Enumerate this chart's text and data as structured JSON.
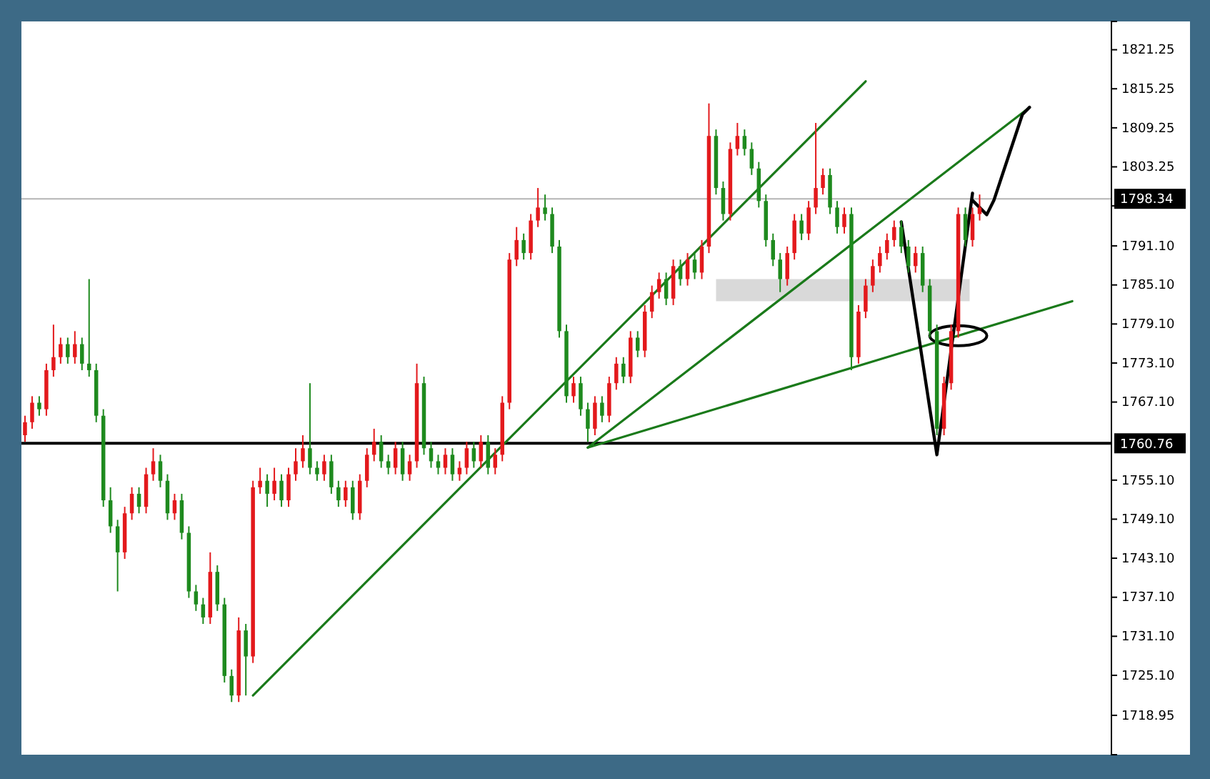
{
  "chart_data": {
    "type": "candlestick",
    "tick_labels": "y",
    "grid": false,
    "ylim": [
      1712.9,
      1825.6
    ],
    "yticks": [
      {
        "value": 1718.95,
        "label": "1718.95"
      },
      {
        "value": 1725.1,
        "label": "1725.10"
      },
      {
        "value": 1731.1,
        "label": "1731.10"
      },
      {
        "value": 1737.1,
        "label": "1737.10"
      },
      {
        "value": 1743.1,
        "label": "1743.10"
      },
      {
        "value": 1749.1,
        "label": "1749.10"
      },
      {
        "value": 1755.1,
        "label": "1755.10"
      },
      {
        "value": 1767.1,
        "label": "1767.10"
      },
      {
        "value": 1773.1,
        "label": "1773.10"
      },
      {
        "value": 1779.1,
        "label": "1779.10"
      },
      {
        "value": 1785.1,
        "label": "1785.10"
      },
      {
        "value": 1791.1,
        "label": "1791.10"
      },
      {
        "value": 1797.25,
        "label": null
      },
      {
        "value": 1803.25,
        "label": "1803.25"
      },
      {
        "value": 1809.25,
        "label": "1809.25"
      },
      {
        "value": 1815.25,
        "label": "1815.25"
      },
      {
        "value": 1821.25,
        "label": "1821.25"
      }
    ],
    "categories": [
      null,
      null,
      null,
      null,
      null,
      null,
      null,
      null,
      null,
      null,
      null,
      null,
      null,
      null,
      null,
      null,
      null,
      null,
      null,
      null,
      null,
      null,
      null,
      null,
      null,
      null,
      null,
      null,
      null,
      null,
      null,
      null,
      null,
      null,
      null,
      null,
      null,
      null,
      null,
      null,
      null,
      null,
      null,
      null,
      null,
      null,
      null,
      null,
      null,
      null,
      null,
      null,
      null,
      null,
      null,
      null,
      null,
      null,
      null,
      null,
      null,
      null,
      null,
      null,
      null,
      null,
      null,
      null,
      null,
      null,
      null,
      null,
      null,
      null,
      null,
      null,
      null,
      null,
      null,
      null,
      null,
      null,
      null,
      null,
      null,
      null,
      null,
      null,
      null,
      null,
      null,
      null,
      null,
      null,
      null,
      null,
      null,
      null,
      null,
      null,
      null,
      null,
      null,
      null,
      null,
      null,
      null,
      null,
      null,
      null,
      null,
      null,
      null,
      null,
      null,
      null,
      null,
      null,
      null,
      null,
      null,
      null,
      null,
      null,
      null,
      null,
      null,
      null,
      null,
      null,
      null,
      null,
      null,
      null,
      null,
      null,
      null,
      null,
      null,
      null,
      null,
      null,
      null,
      null,
      null,
      null,
      null,
      null,
      null,
      null,
      null,
      null,
      null
    ],
    "ohlc": [
      [
        1762,
        1765,
        1761,
        1764
      ],
      [
        1764,
        1768,
        1763,
        1767
      ],
      [
        1767,
        1768,
        1765,
        1766
      ],
      [
        1766,
        1773,
        1765,
        1772
      ],
      [
        1772,
        1779,
        1771,
        1774
      ],
      [
        1774,
        1777,
        1773,
        1776
      ],
      [
        1776,
        1777,
        1773,
        1774
      ],
      [
        1774,
        1778,
        1773,
        1776
      ],
      [
        1776,
        1777,
        1772,
        1773
      ],
      [
        1773,
        1786,
        1771,
        1772
      ],
      [
        1772,
        1773,
        1764,
        1765
      ],
      [
        1765,
        1766,
        1751,
        1752
      ],
      [
        1752,
        1754,
        1747,
        1748
      ],
      [
        1748,
        1749,
        1738,
        1744
      ],
      [
        1744,
        1751,
        1743,
        1750
      ],
      [
        1750,
        1754,
        1749,
        1753
      ],
      [
        1753,
        1754,
        1750,
        1751
      ],
      [
        1751,
        1757,
        1750,
        1756
      ],
      [
        1756,
        1760,
        1755,
        1758
      ],
      [
        1758,
        1759,
        1754,
        1755
      ],
      [
        1755,
        1756,
        1749,
        1750
      ],
      [
        1750,
        1753,
        1749,
        1752
      ],
      [
        1752,
        1753,
        1746,
        1747
      ],
      [
        1747,
        1748,
        1737,
        1738
      ],
      [
        1738,
        1739,
        1735,
        1736
      ],
      [
        1736,
        1737,
        1733,
        1734
      ],
      [
        1734,
        1744,
        1733,
        1741
      ],
      [
        1741,
        1742,
        1735,
        1736
      ],
      [
        1736,
        1737,
        1724,
        1725
      ],
      [
        1725,
        1726,
        1721,
        1722
      ],
      [
        1722,
        1734,
        1721,
        1732
      ],
      [
        1732,
        1733,
        1722,
        1728
      ],
      [
        1728,
        1755,
        1727,
        1754
      ],
      [
        1754,
        1757,
        1753,
        1755
      ],
      [
        1755,
        1756,
        1751,
        1753
      ],
      [
        1753,
        1757,
        1752,
        1755
      ],
      [
        1755,
        1756,
        1751,
        1752
      ],
      [
        1752,
        1757,
        1751,
        1756
      ],
      [
        1756,
        1760,
        1755,
        1758
      ],
      [
        1758,
        1762,
        1757,
        1760
      ],
      [
        1760,
        1770,
        1756,
        1757
      ],
      [
        1757,
        1758,
        1755,
        1756
      ],
      [
        1756,
        1759,
        1755,
        1758
      ],
      [
        1758,
        1759,
        1753,
        1754
      ],
      [
        1754,
        1755,
        1751,
        1752
      ],
      [
        1752,
        1755,
        1751,
        1754
      ],
      [
        1754,
        1755,
        1749,
        1750
      ],
      [
        1750,
        1756,
        1749,
        1755
      ],
      [
        1755,
        1760,
        1754,
        1759
      ],
      [
        1759,
        1763,
        1758,
        1761
      ],
      [
        1761,
        1762,
        1757,
        1758
      ],
      [
        1758,
        1759,
        1756,
        1757
      ],
      [
        1757,
        1761,
        1756,
        1760
      ],
      [
        1760,
        1761,
        1755,
        1756
      ],
      [
        1756,
        1759,
        1755,
        1758
      ],
      [
        1758,
        1773,
        1757,
        1770
      ],
      [
        1770,
        1771,
        1759,
        1760
      ],
      [
        1760,
        1761,
        1757,
        1758
      ],
      [
        1758,
        1759,
        1756,
        1757
      ],
      [
        1757,
        1760,
        1756,
        1759
      ],
      [
        1759,
        1760,
        1755,
        1756
      ],
      [
        1756,
        1758,
        1755,
        1757
      ],
      [
        1757,
        1761,
        1756,
        1760
      ],
      [
        1760,
        1761,
        1757,
        1758
      ],
      [
        1758,
        1762,
        1757,
        1761
      ],
      [
        1761,
        1762,
        1756,
        1757
      ],
      [
        1757,
        1760,
        1756,
        1759
      ],
      [
        1759,
        1768,
        1758,
        1767
      ],
      [
        1767,
        1790,
        1766,
        1789
      ],
      [
        1789,
        1794,
        1788,
        1792
      ],
      [
        1792,
        1793,
        1789,
        1790
      ],
      [
        1790,
        1796,
        1789,
        1795
      ],
      [
        1795,
        1800,
        1794,
        1797
      ],
      [
        1797,
        1799,
        1795,
        1796
      ],
      [
        1796,
        1797,
        1790,
        1791
      ],
      [
        1791,
        1792,
        1777,
        1778
      ],
      [
        1778,
        1779,
        1767,
        1768
      ],
      [
        1768,
        1771,
        1767,
        1770
      ],
      [
        1770,
        1771,
        1765,
        1766
      ],
      [
        1766,
        1767,
        1761,
        1763
      ],
      [
        1763,
        1768,
        1762,
        1767
      ],
      [
        1767,
        1768,
        1764,
        1765
      ],
      [
        1765,
        1771,
        1764,
        1770
      ],
      [
        1770,
        1774,
        1769,
        1773
      ],
      [
        1773,
        1774,
        1770,
        1771
      ],
      [
        1771,
        1778,
        1770,
        1777
      ],
      [
        1777,
        1778,
        1774,
        1775
      ],
      [
        1775,
        1782,
        1774,
        1781
      ],
      [
        1781,
        1785,
        1780,
        1784
      ],
      [
        1784,
        1787,
        1783,
        1786
      ],
      [
        1786,
        1787,
        1782,
        1783
      ],
      [
        1783,
        1789,
        1782,
        1788
      ],
      [
        1788,
        1789,
        1785,
        1786
      ],
      [
        1786,
        1790,
        1785,
        1789
      ],
      [
        1789,
        1790,
        1786,
        1787
      ],
      [
        1787,
        1792,
        1786,
        1791
      ],
      [
        1791,
        1813,
        1790,
        1808
      ],
      [
        1808,
        1809,
        1799,
        1800
      ],
      [
        1800,
        1801,
        1795,
        1796
      ],
      [
        1796,
        1807,
        1795,
        1806
      ],
      [
        1806,
        1810,
        1805,
        1808
      ],
      [
        1808,
        1809,
        1805,
        1806
      ],
      [
        1806,
        1807,
        1802,
        1803
      ],
      [
        1803,
        1804,
        1797,
        1798
      ],
      [
        1798,
        1799,
        1791,
        1792
      ],
      [
        1792,
        1793,
        1788,
        1789
      ],
      [
        1789,
        1790,
        1784,
        1786
      ],
      [
        1786,
        1791,
        1785,
        1790
      ],
      [
        1790,
        1796,
        1789,
        1795
      ],
      [
        1795,
        1796,
        1792,
        1793
      ],
      [
        1793,
        1798,
        1792,
        1797
      ],
      [
        1797,
        1810,
        1796,
        1800
      ],
      [
        1800,
        1803,
        1799,
        1802
      ],
      [
        1802,
        1803,
        1796,
        1797
      ],
      [
        1797,
        1798,
        1793,
        1794
      ],
      [
        1794,
        1797,
        1793,
        1796
      ],
      [
        1796,
        1797,
        1772,
        1774
      ],
      [
        1774,
        1782,
        1773,
        1781
      ],
      [
        1781,
        1786,
        1780,
        1785
      ],
      [
        1785,
        1789,
        1784,
        1788
      ],
      [
        1788,
        1791,
        1787,
        1790
      ],
      [
        1790,
        1793,
        1789,
        1792
      ],
      [
        1792,
        1795,
        1791,
        1794
      ],
      [
        1794,
        1795,
        1790,
        1791
      ],
      [
        1791,
        1792,
        1787,
        1788
      ],
      [
        1788,
        1791,
        1787,
        1790
      ],
      [
        1790,
        1791,
        1784,
        1785
      ],
      [
        1785,
        1786,
        1777,
        1778
      ],
      [
        1778,
        1779,
        1762,
        1763
      ],
      [
        1763,
        1771,
        1762,
        1770
      ],
      [
        1770,
        1779,
        1769,
        1778
      ],
      [
        1778,
        1797,
        1777,
        1796
      ],
      [
        1796,
        1797,
        1791,
        1792
      ],
      [
        1792,
        1797,
        1791,
        1796
      ],
      [
        1796,
        1799,
        1795,
        1797
      ],
      null,
      null,
      null,
      null,
      null,
      null,
      null,
      null,
      null,
      null,
      null,
      null,
      null,
      null,
      null,
      null,
      null,
      null
    ],
    "series": [
      {
        "type": "line",
        "color": "#1a7a1a",
        "values": [
          null,
          null,
          null,
          null,
          null,
          null,
          null,
          null,
          null,
          null,
          null,
          null,
          null,
          null,
          null,
          null,
          null,
          null,
          null,
          null,
          null,
          null,
          null,
          null,
          null,
          null,
          null,
          null,
          null,
          null,
          null,
          null,
          1722.0,
          null,
          null,
          null,
          null,
          null,
          null,
          null,
          null,
          null,
          null,
          null,
          null,
          null,
          null,
          null,
          null,
          null,
          null,
          null,
          null,
          null,
          null,
          null,
          null,
          null,
          null,
          null,
          null,
          null,
          null,
          null,
          null,
          null,
          null,
          null,
          null,
          null,
          null,
          null,
          null,
          null,
          null,
          null,
          null,
          null,
          null,
          null,
          null,
          null,
          null,
          null,
          null,
          null,
          null,
          null,
          null,
          null,
          null,
          null,
          null,
          null,
          null,
          null,
          null,
          null,
          null,
          null,
          null,
          null,
          null,
          null,
          null,
          null,
          null,
          null,
          null,
          null,
          null,
          null,
          null,
          null,
          null,
          null,
          null,
          null,
          1816.4,
          null,
          null,
          null,
          null,
          null,
          null,
          null,
          null,
          null,
          null,
          null,
          null,
          null,
          null,
          null,
          null,
          null,
          null,
          null,
          null,
          null,
          null,
          null,
          null,
          null,
          null,
          null,
          null,
          null,
          null,
          null,
          null,
          null,
          null
        ]
      },
      {
        "type": "line",
        "color": "#1a7a1a",
        "values": [
          null,
          null,
          null,
          null,
          null,
          null,
          null,
          null,
          null,
          null,
          null,
          null,
          null,
          null,
          null,
          null,
          null,
          null,
          null,
          null,
          null,
          null,
          null,
          null,
          null,
          null,
          null,
          null,
          null,
          null,
          null,
          null,
          null,
          null,
          null,
          null,
          null,
          null,
          null,
          null,
          null,
          null,
          null,
          null,
          null,
          null,
          null,
          null,
          null,
          null,
          null,
          null,
          null,
          null,
          null,
          null,
          null,
          null,
          null,
          null,
          null,
          null,
          null,
          null,
          null,
          null,
          null,
          null,
          null,
          null,
          null,
          null,
          null,
          null,
          null,
          null,
          null,
          null,
          null,
          1760.1,
          null,
          null,
          null,
          null,
          null,
          null,
          null,
          null,
          null,
          null,
          null,
          null,
          null,
          null,
          null,
          null,
          null,
          null,
          null,
          null,
          null,
          null,
          null,
          null,
          null,
          null,
          null,
          null,
          null,
          null,
          null,
          null,
          null,
          null,
          null,
          null,
          null,
          null,
          null,
          null,
          null,
          null,
          null,
          null,
          null,
          null,
          null,
          null,
          null,
          null,
          null,
          null,
          null,
          null,
          null,
          null,
          null,
          null,
          null,
          null,
          null,
          1812.4,
          null,
          null,
          null,
          null,
          null,
          null,
          null,
          null,
          null,
          null,
          null
        ]
      },
      {
        "type": "line",
        "color": "#1a7a1a",
        "values": [
          null,
          null,
          null,
          null,
          null,
          null,
          null,
          null,
          null,
          null,
          null,
          null,
          null,
          null,
          null,
          null,
          null,
          null,
          null,
          null,
          null,
          null,
          null,
          null,
          null,
          null,
          null,
          null,
          null,
          null,
          null,
          null,
          null,
          null,
          null,
          null,
          null,
          null,
          null,
          null,
          null,
          null,
          null,
          null,
          null,
          null,
          null,
          null,
          null,
          null,
          null,
          null,
          null,
          null,
          null,
          null,
          null,
          null,
          null,
          null,
          null,
          null,
          null,
          null,
          null,
          null,
          null,
          null,
          null,
          null,
          null,
          null,
          null,
          null,
          null,
          null,
          null,
          null,
          null,
          1760.1,
          null,
          null,
          null,
          null,
          null,
          null,
          null,
          null,
          null,
          null,
          null,
          null,
          null,
          null,
          null,
          null,
          null,
          null,
          null,
          null,
          null,
          null,
          null,
          null,
          null,
          null,
          null,
          null,
          null,
          null,
          null,
          null,
          null,
          null,
          null,
          null,
          null,
          null,
          null,
          null,
          null,
          null,
          null,
          null,
          null,
          null,
          null,
          null,
          null,
          null,
          null,
          null,
          null,
          null,
          null,
          null,
          null,
          null,
          null,
          null,
          null,
          null,
          null,
          null,
          null,
          null,
          null,
          1782.6,
          null,
          null,
          null,
          null,
          null
        ]
      },
      {
        "type": "line",
        "color": "#000000",
        "values": [
          null,
          null,
          null,
          null,
          null,
          null,
          null,
          null,
          null,
          null,
          null,
          null,
          null,
          null,
          null,
          null,
          null,
          null,
          null,
          null,
          null,
          null,
          null,
          null,
          null,
          null,
          null,
          null,
          null,
          null,
          null,
          null,
          null,
          null,
          null,
          null,
          null,
          null,
          null,
          null,
          null,
          null,
          null,
          null,
          null,
          null,
          null,
          null,
          null,
          null,
          null,
          null,
          null,
          null,
          null,
          null,
          null,
          null,
          null,
          null,
          null,
          null,
          null,
          null,
          null,
          null,
          null,
          null,
          null,
          null,
          null,
          null,
          null,
          null,
          null,
          null,
          null,
          null,
          null,
          null,
          null,
          null,
          null,
          null,
          null,
          null,
          null,
          null,
          null,
          null,
          null,
          null,
          null,
          null,
          null,
          null,
          null,
          null,
          null,
          null,
          null,
          null,
          null,
          null,
          null,
          null,
          null,
          null,
          null,
          null,
          null,
          null,
          null,
          null,
          null,
          null,
          null,
          null,
          null,
          null,
          null,
          null,
          null,
          1794.8,
          null,
          null,
          null,
          null,
          1759.0,
          null,
          null,
          null,
          null,
          1799.2,
          null,
          null,
          null,
          null,
          null,
          null,
          null,
          null,
          null,
          null,
          null,
          null,
          null,
          null,
          null,
          null,
          null,
          null,
          null
        ]
      },
      {
        "type": "line",
        "color": "#000000",
        "values": [
          null,
          null,
          null,
          null,
          null,
          null,
          null,
          null,
          null,
          null,
          null,
          null,
          null,
          null,
          null,
          null,
          null,
          null,
          null,
          null,
          null,
          null,
          null,
          null,
          null,
          null,
          null,
          null,
          null,
          null,
          null,
          null,
          null,
          null,
          null,
          null,
          null,
          null,
          null,
          null,
          null,
          null,
          null,
          null,
          null,
          null,
          null,
          null,
          null,
          null,
          null,
          null,
          null,
          null,
          null,
          null,
          null,
          null,
          null,
          null,
          null,
          null,
          null,
          null,
          null,
          null,
          null,
          null,
          null,
          null,
          null,
          null,
          null,
          null,
          null,
          null,
          null,
          null,
          null,
          null,
          null,
          null,
          null,
          null,
          null,
          null,
          null,
          null,
          null,
          null,
          null,
          null,
          null,
          null,
          null,
          null,
          null,
          null,
          null,
          null,
          null,
          null,
          null,
          null,
          null,
          null,
          null,
          null,
          null,
          null,
          null,
          null,
          null,
          null,
          null,
          null,
          null,
          null,
          null,
          null,
          null,
          null,
          null,
          null,
          null,
          null,
          null,
          null,
          null,
          null,
          null,
          null,
          null,
          1798.1,
          null,
          1795.9,
          1798.1,
          1801.4,
          1804.7,
          1808,
          1811.3,
          1812.4,
          null,
          null,
          null,
          null,
          null,
          null,
          null,
          null,
          null,
          null,
          null
        ]
      }
    ],
    "ref_lines": [
      {
        "axis": "y",
        "value": 1760.76,
        "label": "1760.76",
        "color": "#000000"
      },
      {
        "axis": "y",
        "value": 1798.34,
        "label": "1798.34",
        "color": "#b4b4b4"
      }
    ]
  }
}
